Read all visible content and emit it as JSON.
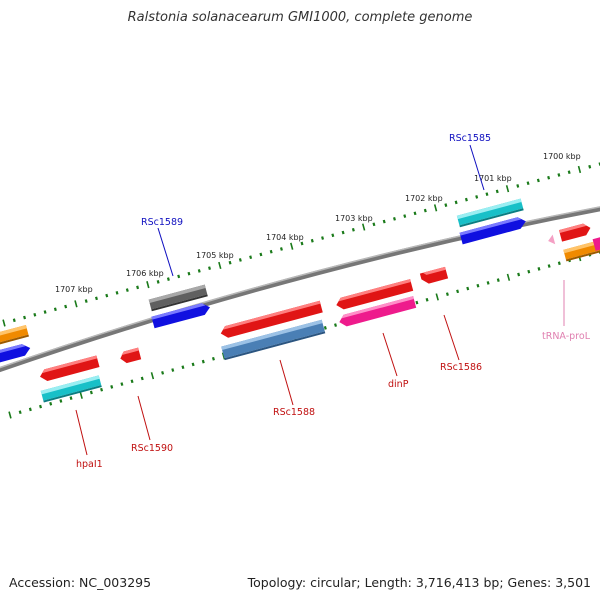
{
  "title": "Ralstonia solanacearum GMI1000, complete genome",
  "accession_text": "Accession: NC_003295",
  "summary_text": "Topology: circular; Length: 3,716,413 bp; Genes: 3,501",
  "colors": {
    "red": "#e01515",
    "teal": "#18c0c8",
    "blue": "#1010e0",
    "gray": "#606060",
    "orange": "#f08a00",
    "magenta": "#ee1b8c",
    "steel": "#4a7fb5",
    "pink": "#f4a0c4",
    "tick": "#1a7a1a",
    "label_blue": "#1010c0",
    "label_red": "#c01010",
    "label_pink": "#e080b0",
    "backbone": "#808080"
  },
  "kbp_labels": [
    "1700 kbp",
    "1701 kbp",
    "1702 kbp",
    "1703 kbp",
    "1704 kbp",
    "1705 kbp",
    "1706 kbp",
    "1707 kbp"
  ],
  "gene_labels": [
    "RSc1585",
    "RSc1589",
    "tRNA-proL",
    "RSc1586",
    "dinP",
    "RSc1588",
    "RSc1590",
    "hpaI1"
  ]
}
